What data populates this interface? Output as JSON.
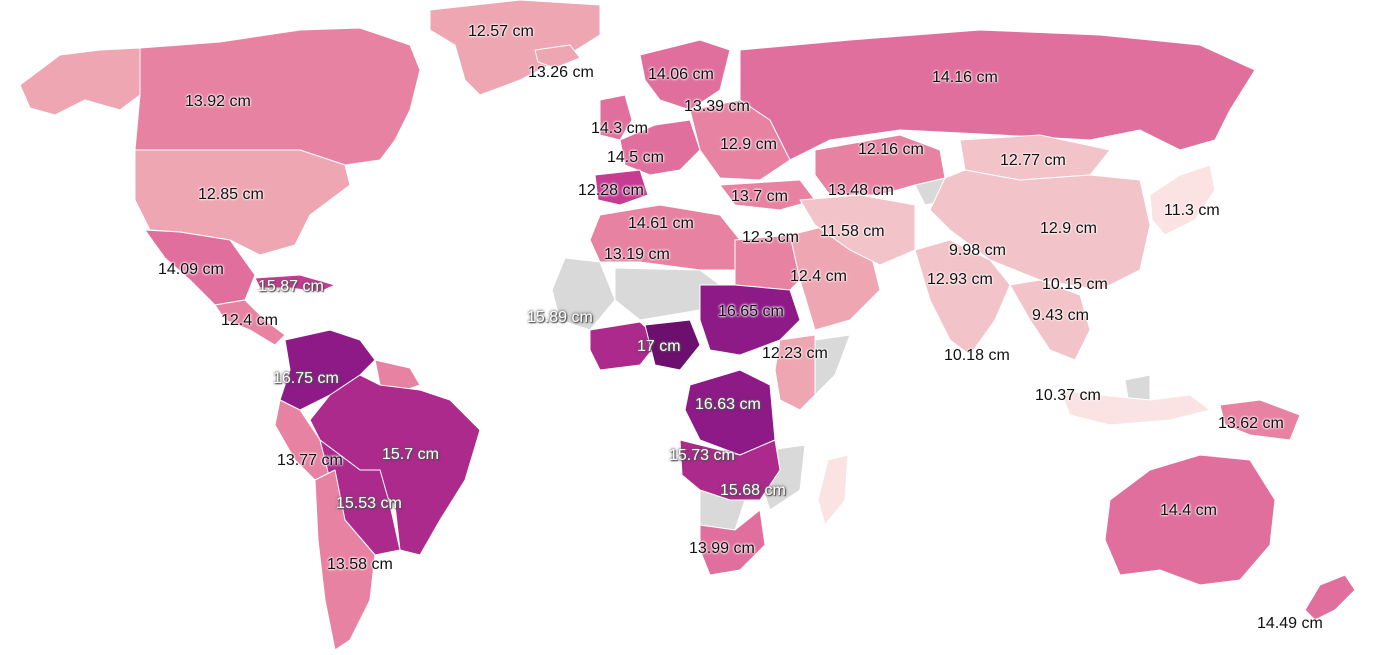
{
  "colors": {
    "background": "#ffffff",
    "no_data": "#d9d9d9",
    "scale": [
      "#fbe3e3",
      "#f2c3c8",
      "#eda6b2",
      "#e782a3",
      "#e06f9d",
      "#c63c93",
      "#ab2a8c",
      "#8d1a87",
      "#6d0f6f"
    ]
  },
  "regions": [
    {
      "id": "greenland",
      "bin": 2
    },
    {
      "id": "canada",
      "bin": 3
    },
    {
      "id": "alaska",
      "bin": 2
    },
    {
      "id": "usa",
      "bin": 2
    },
    {
      "id": "mexico",
      "bin": 4
    },
    {
      "id": "central-america",
      "bin": 3
    },
    {
      "id": "caribbean",
      "bin": 5
    },
    {
      "id": "colombia-venezuela",
      "bin": 7
    },
    {
      "id": "guianas",
      "bin": 3
    },
    {
      "id": "brazil",
      "bin": 6
    },
    {
      "id": "peru",
      "bin": 3
    },
    {
      "id": "bolivia-paraguay",
      "bin": 6
    },
    {
      "id": "chile-argentina",
      "bin": 3
    },
    {
      "id": "iceland",
      "bin": 2
    },
    {
      "id": "uk-ireland",
      "bin": 4
    },
    {
      "id": "scandinavia",
      "bin": 4
    },
    {
      "id": "western-europe",
      "bin": 4
    },
    {
      "id": "iberia",
      "bin": 5
    },
    {
      "id": "central-eastern-europe",
      "bin": 3
    },
    {
      "id": "russia",
      "bin": 4
    },
    {
      "id": "turkey",
      "bin": 3
    },
    {
      "id": "north-africa",
      "bin": 3
    },
    {
      "id": "sahel-egypt",
      "bin": 3
    },
    {
      "id": "west-africa",
      "bin": 6
    },
    {
      "id": "nigeria",
      "bin": 8
    },
    {
      "id": "sudan-chad",
      "bin": 7
    },
    {
      "id": "horn-of-africa",
      "bin": 2
    },
    {
      "id": "congo",
      "bin": 7
    },
    {
      "id": "angola-zambia",
      "bin": 6
    },
    {
      "id": "southern-africa",
      "bin": 4
    },
    {
      "id": "madagascar",
      "bin": 0
    },
    {
      "id": "arabia",
      "bin": 2
    },
    {
      "id": "iran-middle-east",
      "bin": 1
    },
    {
      "id": "central-asia",
      "bin": 3
    },
    {
      "id": "mongolia",
      "bin": 1
    },
    {
      "id": "china",
      "bin": 1
    },
    {
      "id": "india",
      "bin": 1
    },
    {
      "id": "southeast-asia",
      "bin": 1
    },
    {
      "id": "japan-korea",
      "bin": 0
    },
    {
      "id": "indonesia",
      "bin": 0
    },
    {
      "id": "papua",
      "bin": 3
    },
    {
      "id": "australia",
      "bin": 4
    },
    {
      "id": "new-zealand",
      "bin": 4
    }
  ],
  "labels": [
    {
      "id": "greenland",
      "text": "12.57 cm",
      "style": "dark"
    },
    {
      "id": "iceland",
      "text": "13.26 cm",
      "style": "dark"
    },
    {
      "id": "scandinavia",
      "text": "14.06 cm",
      "style": "dark"
    },
    {
      "id": "russia",
      "text": "14.16 cm",
      "style": "dark"
    },
    {
      "id": "canada",
      "text": "13.92 cm",
      "style": "dark"
    },
    {
      "id": "baltics",
      "text": "13.39 cm",
      "style": "dark"
    },
    {
      "id": "uk-ireland",
      "text": "14.3 cm",
      "style": "dark"
    },
    {
      "id": "eastern-europe",
      "text": "12.9 cm",
      "style": "dark"
    },
    {
      "id": "western-europe",
      "text": "14.5 cm",
      "style": "dark"
    },
    {
      "id": "kazakhstan",
      "text": "12.16 cm",
      "style": "dark"
    },
    {
      "id": "mongolia",
      "text": "12.77 cm",
      "style": "dark"
    },
    {
      "id": "usa",
      "text": "12.85 cm",
      "style": "dark"
    },
    {
      "id": "iberia",
      "text": "12.28 cm",
      "style": "dark"
    },
    {
      "id": "turkey",
      "text": "13.7 cm",
      "style": "dark"
    },
    {
      "id": "central-asia",
      "text": "13.48 cm",
      "style": "dark"
    },
    {
      "id": "japan",
      "text": "11.3 cm",
      "style": "dark"
    },
    {
      "id": "north-africa",
      "text": "14.61 cm",
      "style": "dark"
    },
    {
      "id": "egypt",
      "text": "12.3 cm",
      "style": "dark"
    },
    {
      "id": "iran",
      "text": "11.58 cm",
      "style": "dark"
    },
    {
      "id": "china",
      "text": "12.9 cm",
      "style": "dark"
    },
    {
      "id": "nepal",
      "text": "9.98 cm",
      "style": "dark"
    },
    {
      "id": "mexico",
      "text": "14.09 cm",
      "style": "dark"
    },
    {
      "id": "mauritania",
      "text": "13.19 cm",
      "style": "dark"
    },
    {
      "id": "arabia",
      "text": "12.4 cm",
      "style": "dark"
    },
    {
      "id": "india-north",
      "text": "12.93 cm",
      "style": "dark"
    },
    {
      "id": "southeast-asia",
      "text": "10.15 cm",
      "style": "dark"
    },
    {
      "id": "caribbean",
      "text": "15.87 cm",
      "style": "light"
    },
    {
      "id": "central-america",
      "text": "12.4 cm",
      "style": "dark"
    },
    {
      "id": "west-africa",
      "text": "15.89 cm",
      "style": "light"
    },
    {
      "id": "sudan",
      "text": "16.65 cm",
      "style": "dark"
    },
    {
      "id": "thailand",
      "text": "9.43 cm",
      "style": "dark"
    },
    {
      "id": "nigeria",
      "text": "17 cm",
      "style": "light"
    },
    {
      "id": "ethiopia",
      "text": "12.23 cm",
      "style": "dark"
    },
    {
      "id": "india-south",
      "text": "10.18 cm",
      "style": "dark"
    },
    {
      "id": "colombia",
      "text": "16.75 cm",
      "style": "light"
    },
    {
      "id": "philippines",
      "text": "10.37 cm",
      "style": "dark"
    },
    {
      "id": "congo",
      "text": "16.63 cm",
      "style": "light"
    },
    {
      "id": "papua",
      "text": "13.62 cm",
      "style": "dark"
    },
    {
      "id": "brazil",
      "text": "15.7 cm",
      "style": "light"
    },
    {
      "id": "peru",
      "text": "13.77 cm",
      "style": "dark"
    },
    {
      "id": "angola",
      "text": "15.73 cm",
      "style": "light"
    },
    {
      "id": "zambia",
      "text": "15.68 cm",
      "style": "light"
    },
    {
      "id": "bolivia",
      "text": "15.53 cm",
      "style": "light"
    },
    {
      "id": "australia",
      "text": "14.4 cm",
      "style": "dark"
    },
    {
      "id": "south-africa",
      "text": "13.99 cm",
      "style": "dark"
    },
    {
      "id": "argentina",
      "text": "13.58 cm",
      "style": "dark"
    },
    {
      "id": "new-zealand",
      "text": "14.49 cm",
      "style": "dark"
    }
  ]
}
